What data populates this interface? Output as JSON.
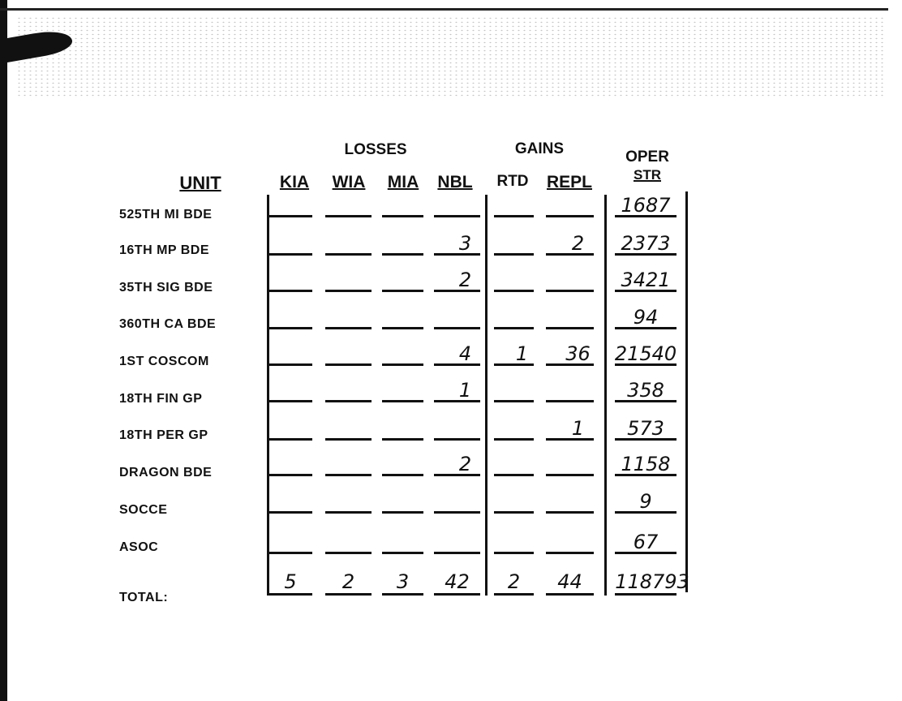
{
  "headers": {
    "losses": "LOSSES",
    "gains": "GAINS",
    "oper": "OPER",
    "str": "STR",
    "unit": "UNIT",
    "columns": [
      "KIA",
      "WIA",
      "MIA",
      "NBL",
      "RTD",
      "REPL"
    ]
  },
  "rows": [
    {
      "unit": "525TH MI BDE",
      "values": [
        "",
        "",
        "",
        "",
        "",
        "",
        "1687"
      ]
    },
    {
      "unit": "16TH MP BDE",
      "values": [
        "",
        "",
        "",
        "3",
        "",
        "2",
        "2373"
      ]
    },
    {
      "unit": "35TH SIG BDE",
      "values": [
        "",
        "",
        "",
        "2",
        "",
        "",
        "3421"
      ]
    },
    {
      "unit": "360TH CA BDE",
      "values": [
        "",
        "",
        "",
        "",
        "",
        "",
        "94"
      ]
    },
    {
      "unit": "1ST COSCOM",
      "values": [
        "",
        "",
        "",
        "4",
        "1",
        "36",
        "21540"
      ]
    },
    {
      "unit": "18TH FIN GP",
      "values": [
        "",
        "",
        "",
        "1",
        "",
        "",
        "358"
      ]
    },
    {
      "unit": "18TH PER GP",
      "values": [
        "",
        "",
        "",
        "",
        "",
        "1",
        "573"
      ]
    },
    {
      "unit": "DRAGON BDE",
      "values": [
        "",
        "",
        "",
        "2",
        "",
        "",
        "1158"
      ]
    },
    {
      "unit": "SOCCE",
      "values": [
        "",
        "",
        "",
        "",
        "",
        "",
        "9"
      ]
    },
    {
      "unit": "ASOC",
      "values": [
        "",
        "",
        "",
        "",
        "",
        "",
        "67"
      ]
    }
  ],
  "total": {
    "label": "TOTAL:",
    "values": [
      "5",
      "2",
      "3",
      "42",
      "2",
      "44",
      "118793"
    ]
  }
}
